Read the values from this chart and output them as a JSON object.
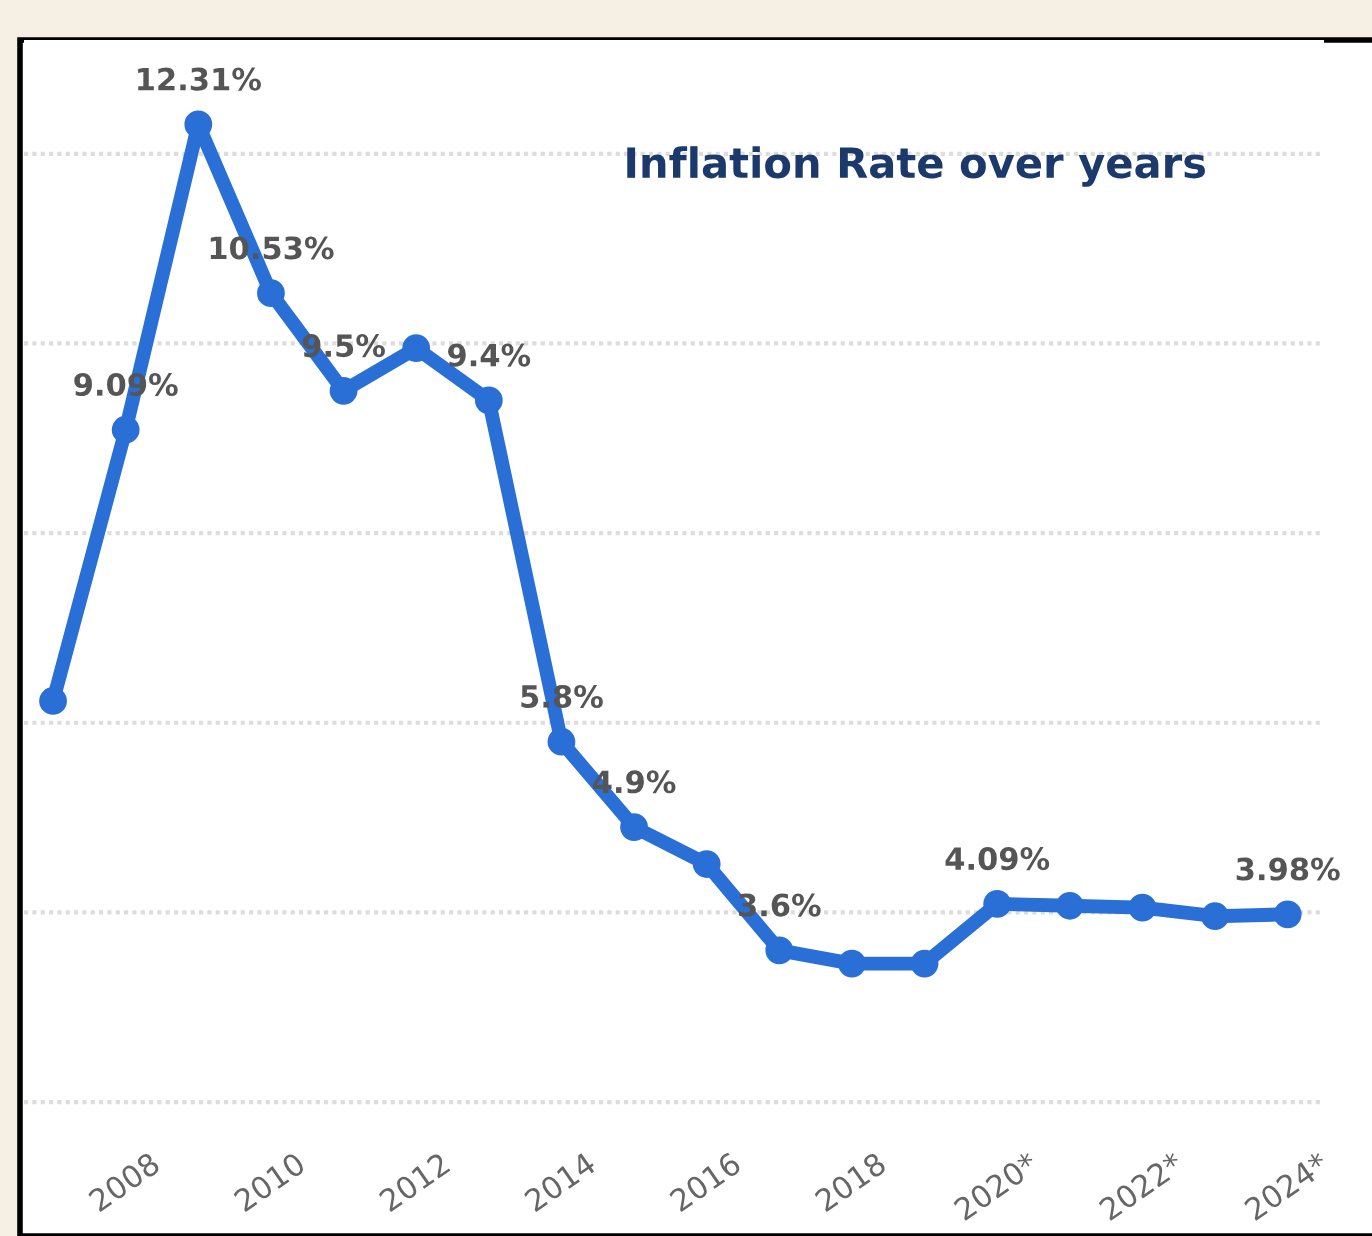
{
  "chart_data": {
    "type": "line",
    "title": "Inflation Rate over years",
    "x": [
      2007,
      2008,
      2009,
      2010,
      2011,
      2012,
      2013,
      2014,
      2015,
      2016,
      2017,
      2018,
      2019,
      2020,
      2021,
      2022,
      2023,
      2024
    ],
    "series": [
      {
        "color": "#2a6fd6",
        "values": [
          6.23,
          9.09,
          12.31,
          10.53,
          9.5,
          9.95,
          9.4,
          5.8,
          4.9,
          4.51,
          3.6,
          3.46,
          3.46,
          4.09,
          4.07,
          4.05,
          3.96,
          3.98
        ],
        "value_labels": [
          null,
          "9.09%",
          "12.31%",
          "10.53%",
          "9.5%",
          null,
          "9.4%",
          "5.8%",
          "4.9%",
          null,
          "3.6%",
          null,
          null,
          "4.09%",
          null,
          null,
          null,
          "3.98%"
        ]
      }
    ],
    "xlim": [
      2006.6,
      2024.5
    ],
    "ylim": [
      1.6,
      13.2
    ],
    "xticks": [
      2008,
      2010,
      2012,
      2014,
      2016,
      2018,
      {
        "value": 2020,
        "label": "2020*"
      },
      {
        "value": 2022,
        "label": "2022*"
      },
      {
        "value": 2024,
        "label": "2024*"
      }
    ],
    "yticks": [
      {
        "value": 2,
        "label": null
      },
      {
        "value": 4,
        "label": null
      },
      {
        "value": 6,
        "label": null
      },
      {
        "value": 8,
        "label": null
      },
      {
        "value": 10,
        "label": null
      },
      {
        "value": 12,
        "label": null
      }
    ],
    "tick_labels": "x",
    "grid": "y",
    "marker": "circle",
    "line_style": "solid"
  }
}
